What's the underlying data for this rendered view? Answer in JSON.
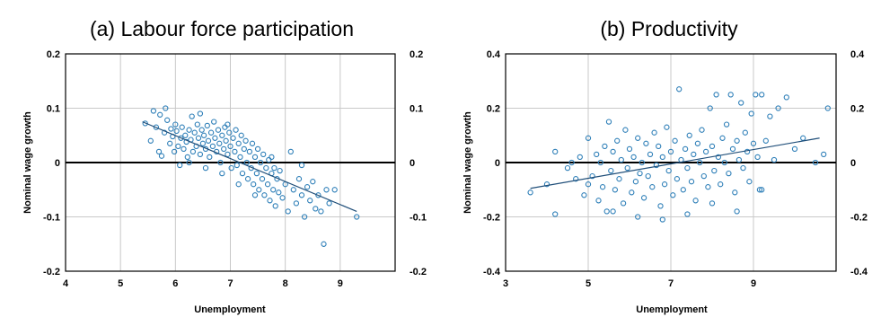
{
  "chart_data": [
    {
      "type": "scatter",
      "title": "(a) Labour force participation",
      "xlabel": "Unemployment",
      "ylabel": "Nominal wage growth",
      "xlim": [
        4,
        10
      ],
      "ylim": [
        -0.2,
        0.2
      ],
      "x_ticks": [
        "4",
        "5",
        "6",
        "7",
        "8",
        "9"
      ],
      "y_ticks": [
        "-0.2",
        "-0.1",
        "0",
        "0.1",
        "0.2"
      ],
      "right_y_ticks": [
        "-0.2",
        "-0.1",
        "0",
        "0.1",
        "0.2"
      ],
      "grid": true,
      "marker": "hollow circle",
      "color": "#2e7fb8",
      "trendline": {
        "x": [
          5.4,
          9.3
        ],
        "y": [
          0.075,
          -0.09
        ],
        "color": "#1f4e79"
      },
      "points": [
        [
          5.45,
          0.072
        ],
        [
          5.55,
          0.04
        ],
        [
          5.6,
          0.095
        ],
        [
          5.65,
          0.065
        ],
        [
          5.7,
          0.02
        ],
        [
          5.72,
          0.088
        ],
        [
          5.75,
          0.012
        ],
        [
          5.8,
          0.055
        ],
        [
          5.82,
          0.1
        ],
        [
          5.85,
          0.078
        ],
        [
          5.9,
          0.035
        ],
        [
          5.92,
          0.062
        ],
        [
          5.95,
          0.048
        ],
        [
          5.98,
          0.02
        ],
        [
          6.0,
          0.07
        ],
        [
          6.02,
          0.058
        ],
        [
          6.05,
          0.03
        ],
        [
          6.08,
          -0.005
        ],
        [
          6.1,
          0.045
        ],
        [
          6.12,
          0.065
        ],
        [
          6.15,
          0.025
        ],
        [
          6.18,
          0.05
        ],
        [
          6.2,
          0.038
        ],
        [
          6.22,
          0.01
        ],
        [
          6.25,
          0.06
        ],
        [
          6.28,
          0.042
        ],
        [
          6.3,
          0.085
        ],
        [
          6.32,
          0.02
        ],
        [
          6.35,
          0.055
        ],
        [
          6.38,
          0.03
        ],
        [
          6.4,
          0.07
        ],
        [
          6.42,
          0.045
        ],
        [
          6.45,
          0.015
        ],
        [
          6.48,
          0.06
        ],
        [
          6.5,
          0.035
        ],
        [
          6.52,
          0.05
        ],
        [
          6.55,
          0.025
        ],
        [
          6.58,
          0.068
        ],
        [
          6.6,
          0.04
        ],
        [
          6.62,
          0.01
        ],
        [
          6.65,
          0.055
        ],
        [
          6.68,
          0.03
        ],
        [
          6.7,
          0.075
        ],
        [
          6.72,
          0.045
        ],
        [
          6.75,
          0.02
        ],
        [
          6.78,
          0.06
        ],
        [
          6.8,
          0.035
        ],
        [
          6.82,
          0.0
        ],
        [
          6.85,
          0.05
        ],
        [
          6.88,
          0.025
        ],
        [
          6.9,
          0.065
        ],
        [
          6.92,
          0.04
        ],
        [
          6.95,
          0.015
        ],
        [
          6.98,
          0.055
        ],
        [
          7.0,
          0.03
        ],
        [
          7.02,
          -0.01
        ],
        [
          7.05,
          0.045
        ],
        [
          7.08,
          0.02
        ],
        [
          7.1,
          0.06
        ],
        [
          7.12,
          -0.005
        ],
        [
          7.15,
          0.035
        ],
        [
          7.18,
          0.01
        ],
        [
          7.2,
          0.05
        ],
        [
          7.22,
          -0.02
        ],
        [
          7.25,
          0.025
        ],
        [
          7.28,
          0.04
        ],
        [
          7.3,
          0.0
        ],
        [
          7.32,
          -0.03
        ],
        [
          7.35,
          0.02
        ],
        [
          7.38,
          -0.01
        ],
        [
          7.4,
          0.035
        ],
        [
          7.42,
          -0.04
        ],
        [
          7.45,
          0.01
        ],
        [
          7.48,
          -0.02
        ],
        [
          7.5,
          0.025
        ],
        [
          7.52,
          -0.05
        ],
        [
          7.55,
          0.0
        ],
        [
          7.58,
          -0.03
        ],
        [
          7.6,
          0.015
        ],
        [
          7.62,
          -0.06
        ],
        [
          7.65,
          -0.01
        ],
        [
          7.68,
          -0.04
        ],
        [
          7.7,
          0.005
        ],
        [
          7.72,
          -0.07
        ],
        [
          7.75,
          -0.02
        ],
        [
          7.78,
          -0.05
        ],
        [
          7.8,
          -0.01
        ],
        [
          7.82,
          -0.08
        ],
        [
          7.85,
          -0.03
        ],
        [
          7.88,
          -0.055
        ],
        [
          7.9,
          -0.015
        ],
        [
          7.95,
          -0.065
        ],
        [
          8.0,
          -0.04
        ],
        [
          8.05,
          -0.09
        ],
        [
          8.1,
          0.02
        ],
        [
          8.15,
          -0.05
        ],
        [
          8.2,
          -0.075
        ],
        [
          8.25,
          -0.03
        ],
        [
          8.3,
          -0.06
        ],
        [
          8.35,
          -0.1
        ],
        [
          8.4,
          -0.045
        ],
        [
          8.45,
          -0.07
        ],
        [
          8.5,
          -0.035
        ],
        [
          8.55,
          -0.085
        ],
        [
          8.6,
          -0.06
        ],
        [
          8.65,
          -0.09
        ],
        [
          8.7,
          -0.15
        ],
        [
          8.75,
          -0.05
        ],
        [
          8.8,
          -0.075
        ],
        [
          8.9,
          -0.05
        ],
        [
          9.3,
          -0.1
        ],
        [
          8.3,
          -0.005
        ],
        [
          6.25,
          0.0
        ],
        [
          6.55,
          -0.01
        ],
        [
          6.85,
          -0.02
        ],
        [
          7.15,
          -0.04
        ],
        [
          7.45,
          -0.06
        ],
        [
          7.75,
          0.01
        ],
        [
          6.45,
          0.09
        ],
        [
          6.95,
          0.07
        ]
      ]
    },
    {
      "type": "scatter",
      "title": "(b) Productivity",
      "xlabel": "Unemployment",
      "ylabel": "Nominal wage growth",
      "xlim": [
        3,
        11
      ],
      "ylim": [
        -0.4,
        0.4
      ],
      "x_ticks": [
        "3",
        "5",
        "7",
        "9"
      ],
      "y_ticks": [
        "-0.4",
        "-0.2",
        "0",
        "0.2",
        "0.4"
      ],
      "right_y_ticks": [
        "-0.4",
        "-0.2",
        "0",
        "0.2",
        "0.4"
      ],
      "grid": true,
      "marker": "hollow circle",
      "color": "#2e7fb8",
      "trendline": {
        "x": [
          3.6,
          10.6
        ],
        "y": [
          -0.095,
          0.09
        ],
        "color": "#1f4e79"
      },
      "points": [
        [
          3.6,
          -0.11
        ],
        [
          4.0,
          -0.08
        ],
        [
          4.2,
          -0.19
        ],
        [
          4.2,
          0.04
        ],
        [
          4.5,
          -0.02
        ],
        [
          4.7,
          -0.06
        ],
        [
          4.8,
          0.02
        ],
        [
          4.9,
          -0.12
        ],
        [
          5.0,
          0.09
        ],
        [
          5.1,
          -0.05
        ],
        [
          5.2,
          0.03
        ],
        [
          5.25,
          -0.14
        ],
        [
          5.3,
          0.0
        ],
        [
          5.35,
          -0.09
        ],
        [
          5.4,
          0.06
        ],
        [
          5.45,
          -0.18
        ],
        [
          5.5,
          0.15
        ],
        [
          5.55,
          -0.03
        ],
        [
          5.6,
          0.04
        ],
        [
          5.65,
          -0.1
        ],
        [
          5.7,
          0.08
        ],
        [
          5.75,
          -0.06
        ],
        [
          5.8,
          0.01
        ],
        [
          5.85,
          -0.15
        ],
        [
          5.9,
          0.12
        ],
        [
          5.95,
          -0.02
        ],
        [
          6.0,
          0.05
        ],
        [
          6.05,
          -0.11
        ],
        [
          6.1,
          0.02
        ],
        [
          6.15,
          -0.07
        ],
        [
          6.2,
          0.09
        ],
        [
          6.25,
          -0.04
        ],
        [
          6.3,
          0.0
        ],
        [
          6.35,
          -0.13
        ],
        [
          6.4,
          0.07
        ],
        [
          6.45,
          -0.05
        ],
        [
          6.5,
          0.03
        ],
        [
          6.55,
          -0.09
        ],
        [
          6.6,
          0.11
        ],
        [
          6.65,
          -0.01
        ],
        [
          6.7,
          0.06
        ],
        [
          6.75,
          -0.16
        ],
        [
          6.8,
          0.02
        ],
        [
          6.85,
          -0.08
        ],
        [
          6.9,
          0.13
        ],
        [
          6.95,
          -0.03
        ],
        [
          7.0,
          0.04
        ],
        [
          7.05,
          -0.12
        ],
        [
          7.1,
          0.08
        ],
        [
          7.15,
          -0.06
        ],
        [
          7.2,
          0.27
        ],
        [
          7.25,
          0.01
        ],
        [
          7.3,
          -0.1
        ],
        [
          7.35,
          0.05
        ],
        [
          7.4,
          -0.02
        ],
        [
          7.45,
          0.1
        ],
        [
          7.5,
          -0.07
        ],
        [
          7.55,
          0.03
        ],
        [
          7.6,
          -0.14
        ],
        [
          7.65,
          0.07
        ],
        [
          7.7,
          0.0
        ],
        [
          7.75,
          0.12
        ],
        [
          7.8,
          -0.05
        ],
        [
          7.85,
          0.04
        ],
        [
          7.9,
          -0.09
        ],
        [
          7.95,
          0.2
        ],
        [
          8.0,
          0.06
        ],
        [
          8.05,
          -0.03
        ],
        [
          8.1,
          0.25
        ],
        [
          8.15,
          0.02
        ],
        [
          8.2,
          -0.08
        ],
        [
          8.25,
          0.09
        ],
        [
          8.3,
          0.0
        ],
        [
          8.35,
          0.14
        ],
        [
          8.4,
          -0.04
        ],
        [
          8.45,
          0.25
        ],
        [
          8.5,
          0.05
        ],
        [
          8.55,
          -0.11
        ],
        [
          8.6,
          0.08
        ],
        [
          8.65,
          0.01
        ],
        [
          8.7,
          0.22
        ],
        [
          8.75,
          -0.02
        ],
        [
          8.8,
          0.11
        ],
        [
          8.85,
          0.04
        ],
        [
          8.9,
          -0.07
        ],
        [
          8.95,
          0.18
        ],
        [
          9.0,
          0.07
        ],
        [
          9.05,
          0.25
        ],
        [
          9.1,
          0.02
        ],
        [
          9.15,
          -0.1
        ],
        [
          9.2,
          0.25
        ],
        [
          9.3,
          0.08
        ],
        [
          9.4,
          0.17
        ],
        [
          9.5,
          0.01
        ],
        [
          9.6,
          0.2
        ],
        [
          9.8,
          0.24
        ],
        [
          10.0,
          0.05
        ],
        [
          10.2,
          0.09
        ],
        [
          10.5,
          0.0
        ],
        [
          10.8,
          0.2
        ],
        [
          4.6,
          0.0
        ],
        [
          5.0,
          -0.08
        ],
        [
          5.6,
          -0.18
        ],
        [
          6.2,
          -0.2
        ],
        [
          6.8,
          -0.21
        ],
        [
          7.4,
          -0.19
        ],
        [
          8.0,
          -0.15
        ],
        [
          8.6,
          -0.18
        ],
        [
          9.2,
          -0.1
        ],
        [
          10.7,
          0.03
        ]
      ]
    }
  ]
}
